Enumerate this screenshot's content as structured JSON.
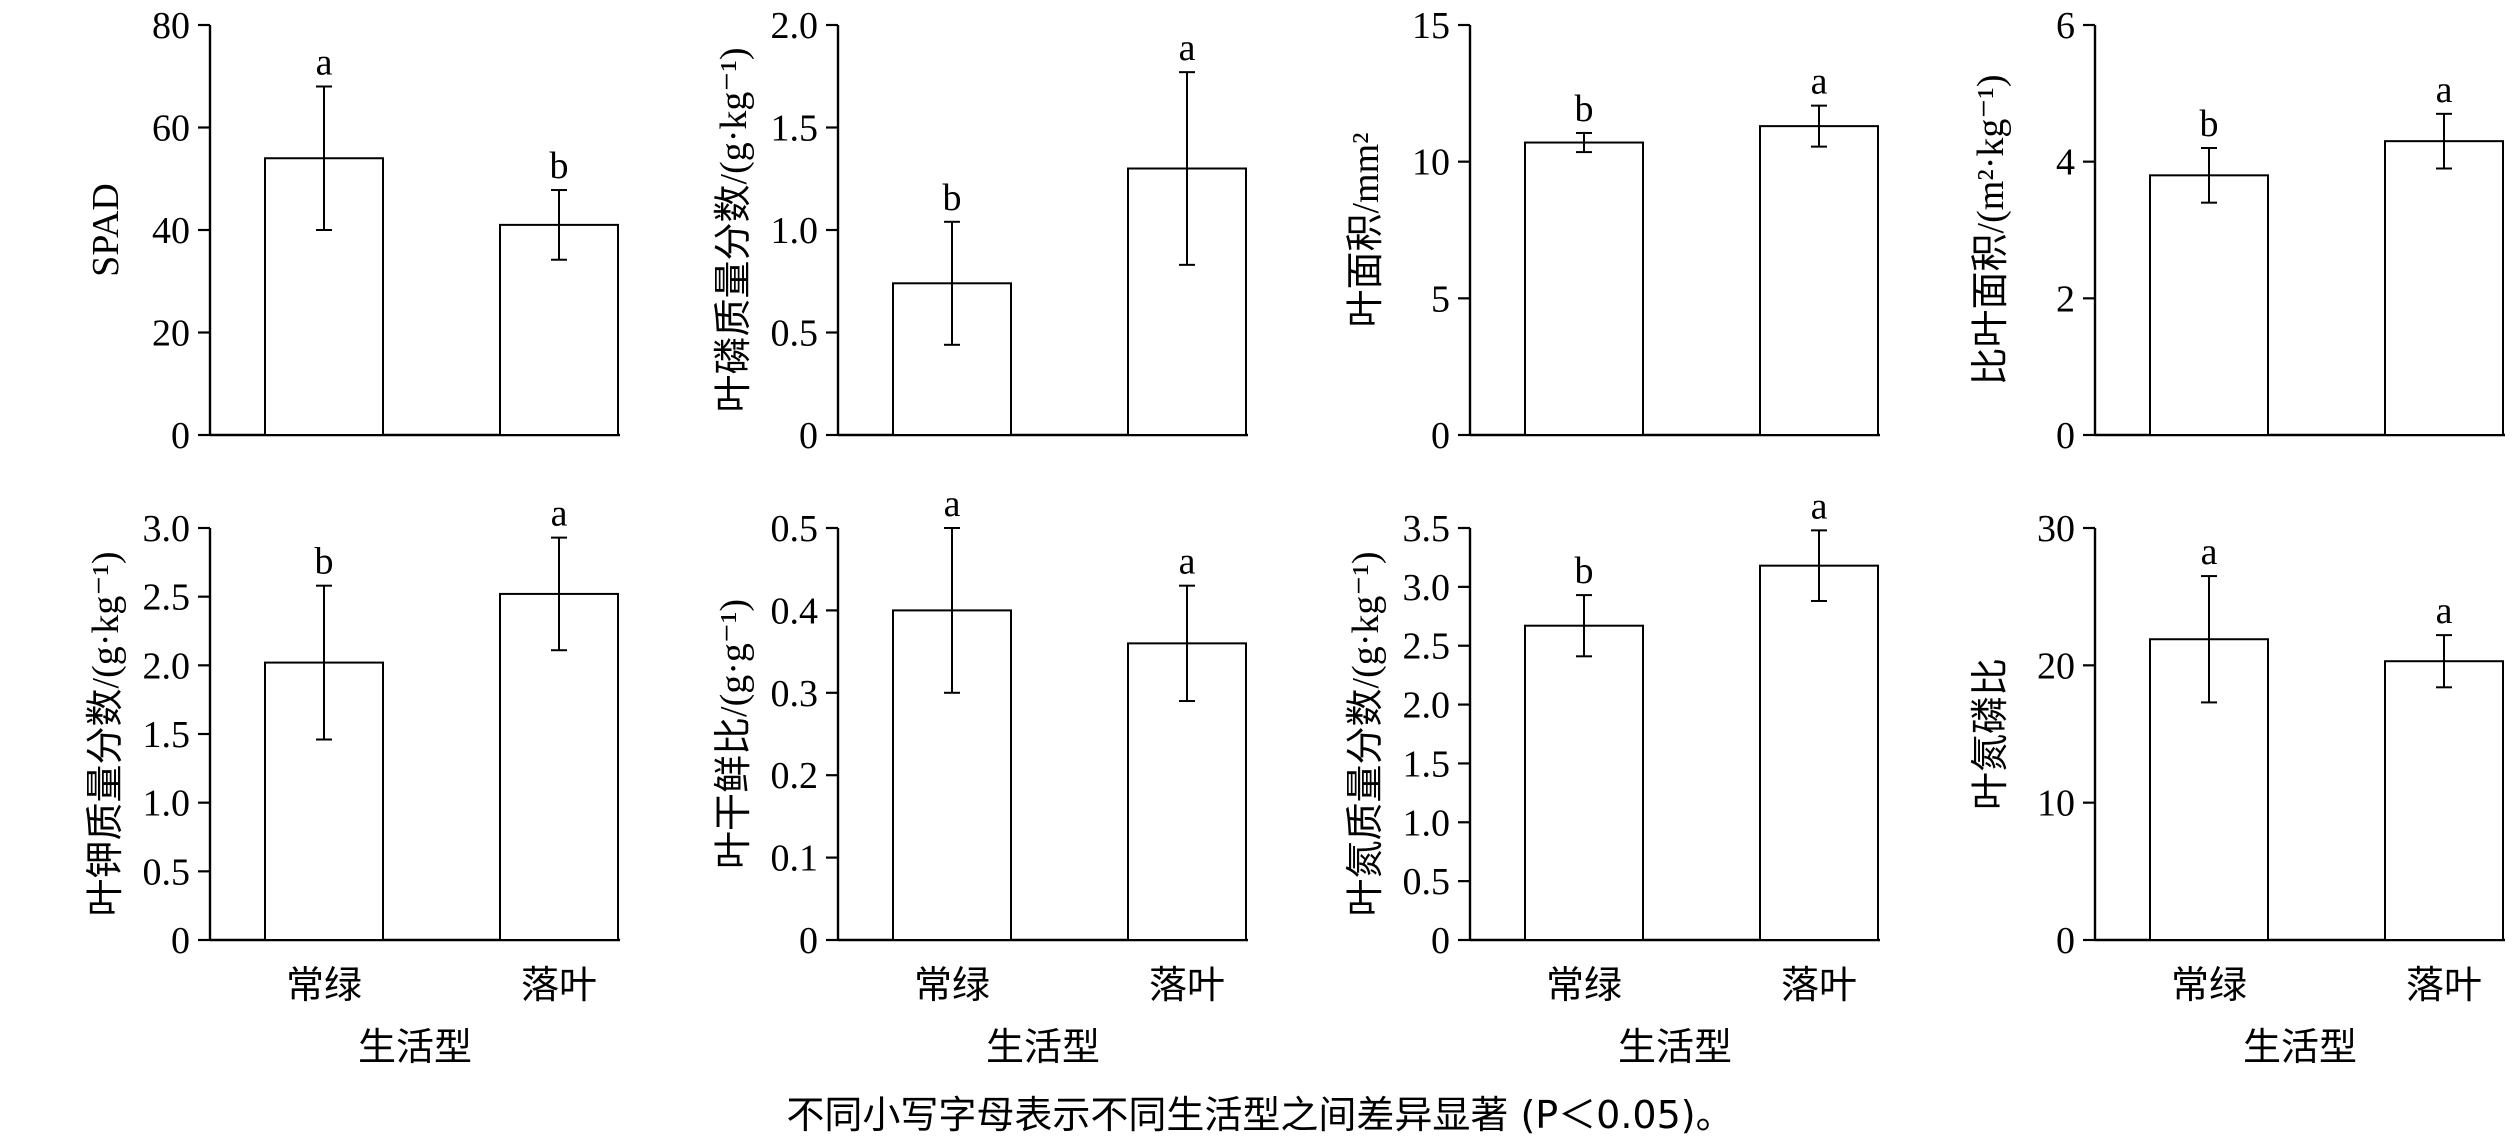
{
  "chart_data": [
    {
      "type": "bar",
      "ylabel": "SPAD",
      "ylim": [
        0,
        80
      ],
      "ticks": [
        "0",
        "20",
        "40",
        "60",
        "80"
      ],
      "categories": [
        "常绿",
        "落叶"
      ],
      "values": [
        54,
        41
      ],
      "errors": [
        14,
        6.8
      ],
      "letters": [
        "a",
        "b"
      ]
    },
    {
      "type": "bar",
      "ylabel": "叶磷质量分数/(g·kg⁻¹)",
      "ylim": [
        0,
        2.0
      ],
      "ticks": [
        "0",
        "0.5",
        "1.0",
        "1.5",
        "2.0"
      ],
      "categories": [
        "常绿",
        "落叶"
      ],
      "values": [
        0.74,
        1.3
      ],
      "errors": [
        0.3,
        0.47
      ],
      "letters": [
        "b",
        "a"
      ]
    },
    {
      "type": "bar",
      "ylabel": "叶面积/mm²",
      "ylim": [
        0,
        15
      ],
      "ticks": [
        "0",
        "5",
        "10",
        "15"
      ],
      "categories": [
        "常绿",
        "落叶"
      ],
      "values": [
        10.7,
        11.3
      ],
      "errors": [
        0.35,
        0.75
      ],
      "letters": [
        "b",
        "a"
      ]
    },
    {
      "type": "bar",
      "ylabel": "比叶面积/(m²·kg⁻¹)",
      "ylim": [
        0,
        6
      ],
      "ticks": [
        "0",
        "2",
        "4",
        "6"
      ],
      "categories": [
        "常绿",
        "落叶"
      ],
      "values": [
        3.8,
        4.3
      ],
      "errors": [
        0.4,
        0.4
      ],
      "letters": [
        "b",
        "a"
      ]
    },
    {
      "type": "bar",
      "ylabel": "叶钾质量分数/(g·kg⁻¹)",
      "ylim": [
        0,
        3.0
      ],
      "ticks": [
        "0",
        "0.5",
        "1.0",
        "1.5",
        "2.0",
        "2.5",
        "3.0"
      ],
      "categories": [
        "常绿",
        "落叶"
      ],
      "values": [
        2.02,
        2.52
      ],
      "errors": [
        0.56,
        0.41
      ],
      "letters": [
        "b",
        "a"
      ]
    },
    {
      "type": "bar",
      "ylabel": "叶干鲜比/(g·g⁻¹)",
      "ylim": [
        0,
        0.5
      ],
      "ticks": [
        "0",
        "0.1",
        "0.2",
        "0.3",
        "0.4",
        "0.5"
      ],
      "categories": [
        "常绿",
        "落叶"
      ],
      "values": [
        0.4,
        0.36
      ],
      "errors": [
        0.1,
        0.07
      ],
      "letters": [
        "a",
        "a"
      ]
    },
    {
      "type": "bar",
      "ylabel": "叶氮质量分数/(g·kg⁻¹)",
      "ylim": [
        0,
        3.5
      ],
      "ticks": [
        "0",
        "0.5",
        "1.0",
        "1.5",
        "2.0",
        "2.5",
        "3.0",
        "3.5"
      ],
      "categories": [
        "常绿",
        "落叶"
      ],
      "values": [
        2.67,
        3.18
      ],
      "errors": [
        0.26,
        0.3
      ],
      "letters": [
        "b",
        "a"
      ]
    },
    {
      "type": "bar",
      "ylabel": "叶氮磷比",
      "ylim": [
        0,
        30
      ],
      "ticks": [
        "0",
        "10",
        "20",
        "30"
      ],
      "categories": [
        "常绿",
        "落叶"
      ],
      "values": [
        21.9,
        20.3
      ],
      "errors": [
        4.6,
        1.9
      ],
      "letters": [
        "a",
        "a"
      ]
    }
  ],
  "xlabel": "生活型",
  "caption": "不同小写字母表示不同生活型之间差异显著 (P＜0.05)。"
}
